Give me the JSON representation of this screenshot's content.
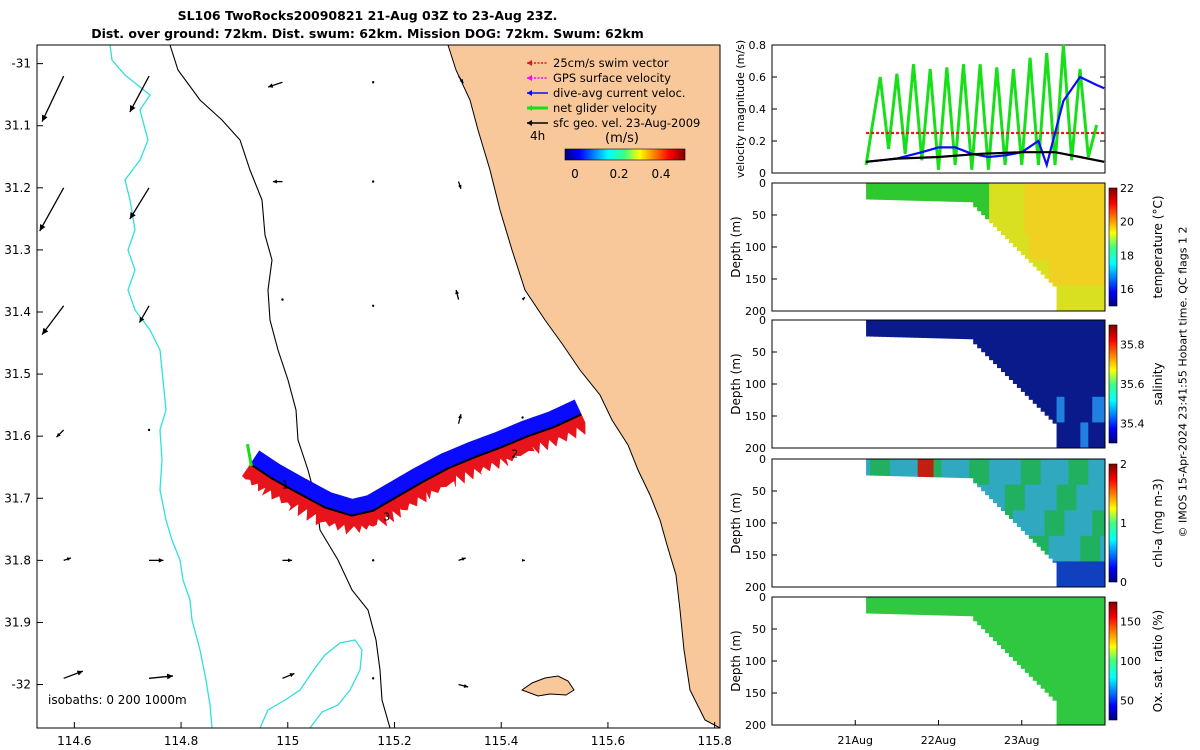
{
  "header": {
    "title_line1": "SL106 TwoRocks20090821 21-Aug 03Z to 23-Aug 23Z.",
    "title_line2": "Dist. over ground: 72km. Dist. swum: 62km. Mission DOG: 72km. Swum: 62km"
  },
  "credit": "© IMOS 15-Apr-2024 23:41:55 Hobart time. QC flags 1  2",
  "colors": {
    "land": "#f9c89a",
    "isobath_shallow": "#000000",
    "isobath_deep": "#2ee0e0",
    "swim": "#e8141c",
    "gps": "#ff00ff",
    "current": "#0a0aff",
    "net": "#18e018",
    "geo": "#000000"
  },
  "chart_data": [
    {
      "id": "map",
      "type": "scatter",
      "x_ticks": [
        "114.6",
        "114.8",
        "115",
        "115.2",
        "115.4",
        "115.6",
        "115.8"
      ],
      "y_ticks": [
        "-31",
        "31.1",
        "31.2",
        "31.3",
        "31.4",
        "31.5",
        "31.6",
        "31.7",
        "31.8",
        "31.9",
        "-32"
      ],
      "xlim": [
        114.53,
        115.81
      ],
      "ylim": [
        -32.07,
        -30.97
      ],
      "legend": {
        "placement": "top-right",
        "entries": [
          "25cm/s swim vector",
          "GPS surface velocity",
          "dive-avg current veloc.",
          "net glider velocity",
          "sfc geo. vel. 23-Aug-2009"
        ],
        "time_label": "4h",
        "units": "(m/s)",
        "colorbar_ticks": [
          "0",
          "0.2",
          "0.4"
        ]
      },
      "isobaths_label": "isobaths: 0   200  1000m",
      "markers": [
        "1",
        "2",
        "3"
      ],
      "track": [
        [
          114.93,
          -31.645
        ],
        [
          114.97,
          -31.668
        ],
        [
          115.02,
          -31.692
        ],
        [
          115.07,
          -31.715
        ],
        [
          115.12,
          -31.728
        ],
        [
          115.16,
          -31.72
        ],
        [
          115.2,
          -31.7
        ],
        [
          115.25,
          -31.675
        ],
        [
          115.3,
          -31.652
        ],
        [
          115.35,
          -31.634
        ],
        [
          115.4,
          -31.618
        ],
        [
          115.45,
          -31.6
        ],
        [
          115.5,
          -31.585
        ],
        [
          115.55,
          -31.565
        ]
      ],
      "geo_arrows": [
        {
          "lon": 114.58,
          "lat": -31.02,
          "u": -0.9,
          "v": -1.9
        },
        {
          "lon": 114.74,
          "lat": -31.02,
          "u": -0.8,
          "v": -1.5
        },
        {
          "lon": 114.99,
          "lat": -31.03,
          "u": -0.6,
          "v": -0.2
        },
        {
          "lon": 115.16,
          "lat": -31.03,
          "u": 0,
          "v": 0
        },
        {
          "lon": 115.32,
          "lat": -31.02,
          "u": 0.2,
          "v": -0.3
        },
        {
          "lon": 114.58,
          "lat": -31.2,
          "u": -1.0,
          "v": -1.8
        },
        {
          "lon": 114.74,
          "lat": -31.2,
          "u": -0.8,
          "v": -1.3
        },
        {
          "lon": 114.99,
          "lat": -31.19,
          "u": -0.4,
          "v": 0
        },
        {
          "lon": 115.16,
          "lat": -31.19,
          "u": 0,
          "v": 0
        },
        {
          "lon": 115.32,
          "lat": -31.19,
          "u": 0.1,
          "v": -0.3
        },
        {
          "lon": 114.58,
          "lat": -31.39,
          "u": -0.9,
          "v": -1.2
        },
        {
          "lon": 114.74,
          "lat": -31.39,
          "u": -0.4,
          "v": -0.7
        },
        {
          "lon": 114.99,
          "lat": -31.38,
          "u": 0,
          "v": 0
        },
        {
          "lon": 115.16,
          "lat": -31.39,
          "u": 0,
          "v": 0
        },
        {
          "lon": 115.32,
          "lat": -31.38,
          "u": -0.1,
          "v": 0.4
        },
        {
          "lon": 115.44,
          "lat": -31.38,
          "u": 0.1,
          "v": 0.1
        },
        {
          "lon": 114.58,
          "lat": -31.59,
          "u": -0.3,
          "v": -0.3
        },
        {
          "lon": 114.74,
          "lat": -31.59,
          "u": 0,
          "v": 0
        },
        {
          "lon": 115.32,
          "lat": -31.58,
          "u": 0.1,
          "v": 0.4
        },
        {
          "lon": 115.44,
          "lat": -31.57,
          "u": 0,
          "v": 0
        },
        {
          "lon": 114.58,
          "lat": -31.8,
          "u": 0.3,
          "v": 0.1
        },
        {
          "lon": 114.74,
          "lat": -31.8,
          "u": 0.6,
          "v": 0
        },
        {
          "lon": 114.99,
          "lat": -31.8,
          "u": 0.4,
          "v": 0
        },
        {
          "lon": 115.16,
          "lat": -31.8,
          "u": 0,
          "v": 0
        },
        {
          "lon": 115.32,
          "lat": -31.8,
          "u": 0.3,
          "v": 0.1
        },
        {
          "lon": 115.44,
          "lat": -31.8,
          "u": 0.1,
          "v": 0
        },
        {
          "lon": 114.58,
          "lat": -31.99,
          "u": 0.8,
          "v": 0.3
        },
        {
          "lon": 114.74,
          "lat": -31.99,
          "u": 1.0,
          "v": 0.1
        },
        {
          "lon": 114.99,
          "lat": -31.99,
          "u": 0.5,
          "v": 0.2
        },
        {
          "lon": 115.16,
          "lat": -31.99,
          "u": 0,
          "v": 0
        },
        {
          "lon": 115.32,
          "lat": -32.0,
          "u": 0.4,
          "v": -0.1
        }
      ]
    },
    {
      "id": "velocity",
      "type": "line",
      "ylabel": "velocity magnitude (m/s)",
      "ylim": [
        0,
        0.8
      ],
      "y_ticks": [
        "0",
        "0.2",
        "0.4",
        "0.6",
        "0.8"
      ],
      "x_ticks": [
        "21Aug",
        "22Aug",
        "23Aug"
      ],
      "xlim": [
        20.0,
        24.0
      ],
      "series": [
        {
          "color": "#18e018",
          "x": [
            21.13,
            21.2,
            21.3,
            21.4,
            21.5,
            21.6,
            21.7,
            21.8,
            21.9,
            22.0,
            22.1,
            22.2,
            22.3,
            22.4,
            22.5,
            22.6,
            22.7,
            22.8,
            22.9,
            23.0,
            23.1,
            23.2,
            23.3,
            23.4,
            23.5,
            23.6,
            23.7,
            23.8,
            23.9
          ],
          "values": [
            0.05,
            0.28,
            0.6,
            0.15,
            0.62,
            0.12,
            0.68,
            0.08,
            0.65,
            0.02,
            0.66,
            0.05,
            0.68,
            0.02,
            0.68,
            0.02,
            0.66,
            0.05,
            0.65,
            0.05,
            0.72,
            0.05,
            0.75,
            0.05,
            0.8,
            0.08,
            0.65,
            0.1,
            0.3
          ]
        },
        {
          "color": "#e8141c",
          "x": [
            21.13,
            23.99
          ],
          "values": [
            0.25,
            0.25
          ]
        },
        {
          "color": "#0a0aff",
          "x": [
            21.13,
            21.5,
            21.8,
            22.0,
            22.2,
            22.4,
            22.6,
            22.8,
            23.0,
            23.2,
            23.3,
            23.5,
            23.7,
            23.9,
            23.99
          ],
          "values": [
            0.07,
            0.09,
            0.13,
            0.16,
            0.16,
            0.12,
            0.1,
            0.11,
            0.13,
            0.2,
            0.05,
            0.45,
            0.6,
            0.55,
            0.53
          ]
        },
        {
          "color": "#000000",
          "x": [
            21.13,
            21.5,
            22.0,
            22.5,
            23.0,
            23.4,
            23.7,
            23.99
          ],
          "values": [
            0.07,
            0.09,
            0.1,
            0.12,
            0.13,
            0.13,
            0.1,
            0.07
          ]
        }
      ]
    },
    {
      "id": "temperature",
      "type": "heatmap",
      "ylabel": "Depth (m)",
      "colorbar_label": "temperature (°C)",
      "ylim": [
        200,
        0
      ],
      "y_ticks": [
        "0",
        "50",
        "100",
        "150",
        "200"
      ],
      "colorbar_ticks": [
        "16",
        "18",
        "20",
        "22"
      ],
      "clim": [
        15,
        22
      ]
    },
    {
      "id": "salinity",
      "type": "heatmap",
      "ylabel": "Depth (m)",
      "colorbar_label": "salinity",
      "ylim": [
        200,
        0
      ],
      "y_ticks": [
        "0",
        "50",
        "100",
        "150",
        "200"
      ],
      "colorbar_ticks": [
        "35.4",
        "35.6",
        "35.8"
      ],
      "clim": [
        35.3,
        35.9
      ]
    },
    {
      "id": "chla",
      "type": "heatmap",
      "ylabel": "Depth (m)",
      "colorbar_label": "chl-a (mg m-3)",
      "ylim": [
        200,
        0
      ],
      "y_ticks": [
        "0",
        "50",
        "100",
        "150",
        "200"
      ],
      "colorbar_ticks": [
        "0",
        "1",
        "2"
      ],
      "clim": [
        0,
        2
      ]
    },
    {
      "id": "oxsat",
      "type": "heatmap",
      "ylabel": "Depth (m)",
      "colorbar_label": "Ox. sat. ratio (%)",
      "ylim": [
        200,
        0
      ],
      "y_ticks": [
        "0",
        "50",
        "100",
        "150",
        "200"
      ],
      "colorbar_ticks": [
        "50",
        "100",
        "150"
      ],
      "clim": [
        25,
        175
      ],
      "x_ticks": [
        "21Aug",
        "22Aug",
        "23Aug"
      ]
    }
  ]
}
